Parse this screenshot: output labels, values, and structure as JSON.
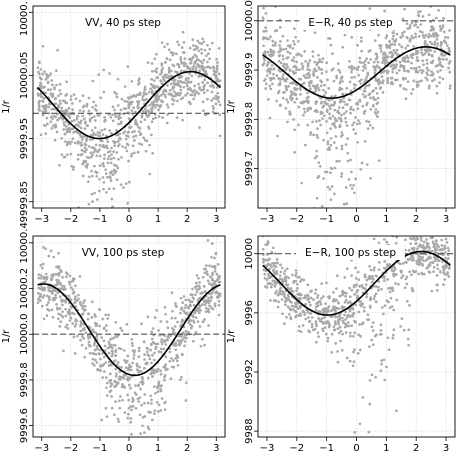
{
  "chart_data": [
    {
      "type": "scatter",
      "title": "VV, 40 ps step",
      "ylabel": "1/r",
      "xlim": [
        -3.3,
        3.3
      ],
      "ylim": [
        9999.84,
        10000.16
      ],
      "xticks": [
        -3,
        -2,
        -1,
        0,
        1,
        2,
        3
      ],
      "xtick_labels": [
        "−3",
        "−2",
        "−1",
        "0",
        "1",
        "2",
        "3"
      ],
      "yticks": [
        9999.85,
        9999.95,
        10000.05,
        10000.15
      ],
      "ytick_labels": [
        "9999.85",
        "9999.95",
        "10000.05",
        "10000.15"
      ],
      "grid": true,
      "reference_line": 9999.99,
      "fit_curve": {
        "offset": 10000.003,
        "amplitude": 0.053,
        "phase": 0.55
      },
      "scatter": {
        "count": 1000,
        "spread": 0.028,
        "dip_center": -0.8,
        "dip_width": 0.9,
        "dip_extra": 0.05
      }
    },
    {
      "type": "scatter",
      "title": "E−R, 40 ps step",
      "ylabel": "1/r",
      "xlim": [
        -3.3,
        3.3
      ],
      "ylim": [
        9999.62,
        10000.03
      ],
      "xticks": [
        -3,
        -2,
        -1,
        0,
        1,
        2,
        3
      ],
      "xtick_labels": [
        "−3",
        "−2",
        "−1",
        "0",
        "1",
        "2",
        "3"
      ],
      "yticks": [
        9999.7,
        9999.8,
        9999.9,
        10000.0
      ],
      "ytick_labels": [
        "9999.7",
        "9999.8",
        "9999.9",
        "10000.0"
      ],
      "grid": true,
      "reference_line": 10000.0,
      "fit_curve": {
        "offset": 9999.895,
        "amplitude": 0.052,
        "phase": 0.75
      },
      "scatter": {
        "count": 1000,
        "spread": 0.04,
        "dip_center": -0.5,
        "dip_width": 1.0,
        "dip_extra": 0.14
      }
    },
    {
      "type": "scatter",
      "title": "VV, 100 ps step",
      "ylabel": "1/r",
      "xlim": [
        -3.3,
        3.3
      ],
      "ylim": [
        9999.55,
        10000.43
      ],
      "xticks": [
        -3,
        -2,
        -1,
        0,
        1,
        2,
        3
      ],
      "xtick_labels": [
        "−3",
        "−2",
        "−1",
        "0",
        "1",
        "2",
        "3"
      ],
      "yticks": [
        9999.6,
        9999.8,
        10000.0,
        10000.2,
        10000.4
      ],
      "ytick_labels": [
        "9999.6",
        "9999.8",
        "10000.0",
        "10000.2",
        "10000.4"
      ],
      "grid": true,
      "reference_line": 10000.0,
      "fit_curve": {
        "offset": 10000.02,
        "amplitude": 0.2,
        "phase": 1.77
      },
      "scatter": {
        "count": 900,
        "spread": 0.07,
        "dip_center": 0.4,
        "dip_width": 1.0,
        "dip_extra": 0.12
      }
    },
    {
      "type": "scatter",
      "title": "E−R, 100 ps step",
      "ylabel": "1/r",
      "xlim": [
        -3.3,
        3.3
      ],
      "ylim": [
        9987.6,
        10001.2
      ],
      "xticks": [
        -3,
        -2,
        -1,
        0,
        1,
        2,
        3
      ],
      "xtick_labels": [
        "−3",
        "−2",
        "−1",
        "0",
        "1",
        "2",
        "3"
      ],
      "yticks": [
        9988,
        9992,
        9996,
        10000
      ],
      "ytick_labels": [
        "9988",
        "9992",
        "9996",
        "10000"
      ],
      "grid": true,
      "reference_line": 10000.0,
      "fit_curve": {
        "offset": 9998.0,
        "amplitude": 2.15,
        "phase": 0.6
      },
      "scatter": {
        "count": 900,
        "spread": 0.9,
        "dip_center": 0.7,
        "dip_width": 0.9,
        "dip_extra": 4.5
      }
    }
  ]
}
